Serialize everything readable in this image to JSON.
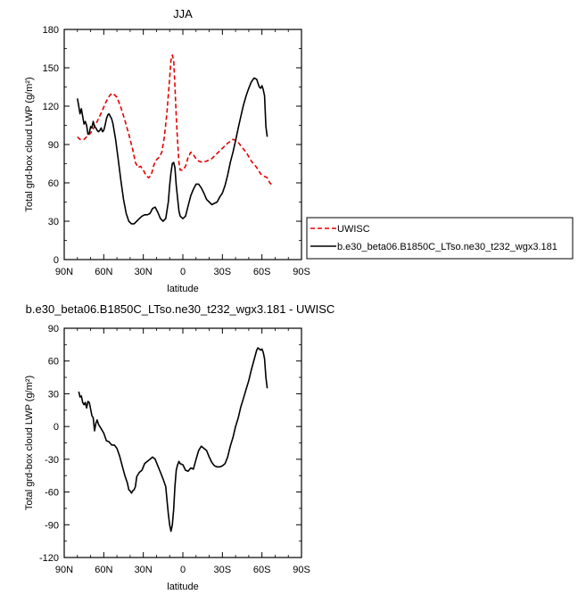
{
  "chart_data": [
    {
      "type": "line",
      "title": "JJA",
      "xlabel": "latitude",
      "ylabel": "Total grd-box cloud LWP (g/m²)",
      "xlim": [
        90,
        -90
      ],
      "ylim": [
        0,
        180
      ],
      "x_ticks": [
        90,
        60,
        30,
        0,
        -30,
        -60,
        -90
      ],
      "x_tick_labels": [
        "90N",
        "60N",
        "30N",
        "0",
        "30S",
        "60S",
        "90S"
      ],
      "y_ticks": [
        0,
        30,
        60,
        90,
        120,
        150,
        180
      ],
      "y_tick_labels": [
        "0",
        "30",
        "60",
        "90",
        "120",
        "150",
        "180"
      ],
      "legend_position": "right",
      "series": [
        {
          "name": "UWISC",
          "color": "#e60000",
          "dash": "dashed",
          "points": [
            [
              80,
              96
            ],
            [
              78,
              94
            ],
            [
              75,
              94
            ],
            [
              72,
              97
            ],
            [
              70,
              99
            ],
            [
              67,
              104
            ],
            [
              64,
              110
            ],
            [
              61,
              117
            ],
            [
              58,
              124
            ],
            [
              55,
              129
            ],
            [
              53,
              130
            ],
            [
              50,
              127
            ],
            [
              47,
              119
            ],
            [
              44,
              109
            ],
            [
              41,
              98
            ],
            [
              38,
              86
            ],
            [
              36,
              76
            ],
            [
              34,
              72
            ],
            [
              32,
              73
            ],
            [
              30,
              70
            ],
            [
              28,
              66
            ],
            [
              26,
              64
            ],
            [
              24,
              66
            ],
            [
              22,
              74
            ],
            [
              20,
              78
            ],
            [
              18,
              80
            ],
            [
              16,
              84
            ],
            [
              14,
              96
            ],
            [
              12,
              116
            ],
            [
              10,
              142
            ],
            [
              9,
              156
            ],
            [
              8,
              160
            ],
            [
              7,
              156
            ],
            [
              6,
              136
            ],
            [
              5,
              112
            ],
            [
              4,
              92
            ],
            [
              3,
              76
            ],
            [
              2,
              70
            ],
            [
              0,
              70
            ],
            [
              -2,
              73
            ],
            [
              -4,
              80
            ],
            [
              -6,
              84
            ],
            [
              -8,
              82
            ],
            [
              -10,
              79
            ],
            [
              -12,
              77
            ],
            [
              -15,
              76
            ],
            [
              -18,
              77
            ],
            [
              -22,
              79
            ],
            [
              -26,
              83
            ],
            [
              -30,
              87
            ],
            [
              -34,
              91
            ],
            [
              -38,
              94
            ],
            [
              -41,
              93
            ],
            [
              -44,
              89
            ],
            [
              -48,
              84
            ],
            [
              -52,
              77
            ],
            [
              -56,
              72
            ],
            [
              -59,
              67
            ],
            [
              -62,
              65
            ],
            [
              -64,
              64
            ],
            [
              -66,
              60
            ],
            [
              -68,
              58
            ]
          ]
        },
        {
          "name": "b.e30_beta06.B1850C_LTso.ne30_t232_wgx3.181",
          "color": "#000000",
          "dash": "solid",
          "points": [
            [
              80,
              126
            ],
            [
              79,
              120
            ],
            [
              78,
              114
            ],
            [
              77,
              118
            ],
            [
              76,
              112
            ],
            [
              75,
              106
            ],
            [
              74,
              108
            ],
            [
              73,
              105
            ],
            [
              72,
              98
            ],
            [
              71,
              99
            ],
            [
              70,
              104
            ],
            [
              69,
              103
            ],
            [
              68,
              108
            ],
            [
              67,
              104
            ],
            [
              66,
              103
            ],
            [
              65,
              101
            ],
            [
              64,
              100
            ],
            [
              63,
              101
            ],
            [
              62,
              103
            ],
            [
              61,
              100
            ],
            [
              60,
              101
            ],
            [
              59,
              105
            ],
            [
              58,
              110
            ],
            [
              57,
              113
            ],
            [
              56,
              114
            ],
            [
              55,
              112
            ],
            [
              54,
              110
            ],
            [
              53,
              106
            ],
            [
              51,
              94
            ],
            [
              49,
              78
            ],
            [
              47,
              62
            ],
            [
              45,
              47
            ],
            [
              43,
              36
            ],
            [
              41,
              30
            ],
            [
              39,
              28
            ],
            [
              37,
              28
            ],
            [
              35,
              30
            ],
            [
              33,
              32
            ],
            [
              31,
              34
            ],
            [
              29,
              35
            ],
            [
              27,
              35
            ],
            [
              25,
              36
            ],
            [
              23,
              40
            ],
            [
              21,
              41
            ],
            [
              19,
              37
            ],
            [
              17,
              32
            ],
            [
              15,
              30
            ],
            [
              13,
              32
            ],
            [
              11,
              45
            ],
            [
              10,
              58
            ],
            [
              9,
              68
            ],
            [
              8,
              75
            ],
            [
              7,
              76
            ],
            [
              6,
              72
            ],
            [
              5,
              58
            ],
            [
              4,
              48
            ],
            [
              3,
              38
            ],
            [
              2,
              34
            ],
            [
              0,
              32
            ],
            [
              -2,
              34
            ],
            [
              -4,
              42
            ],
            [
              -6,
              50
            ],
            [
              -8,
              55
            ],
            [
              -10,
              59
            ],
            [
              -12,
              59
            ],
            [
              -14,
              56
            ],
            [
              -16,
              52
            ],
            [
              -18,
              47
            ],
            [
              -20,
              45
            ],
            [
              -22,
              43
            ],
            [
              -24,
              44
            ],
            [
              -26,
              45
            ],
            [
              -28,
              49
            ],
            [
              -30,
              52
            ],
            [
              -32,
              58
            ],
            [
              -34,
              66
            ],
            [
              -36,
              76
            ],
            [
              -38,
              84
            ],
            [
              -40,
              93
            ],
            [
              -42,
              103
            ],
            [
              -44,
              112
            ],
            [
              -46,
              121
            ],
            [
              -48,
              128
            ],
            [
              -50,
              134
            ],
            [
              -52,
              139
            ],
            [
              -54,
              142
            ],
            [
              -56,
              141
            ],
            [
              -57,
              138
            ],
            [
              -58,
              135
            ],
            [
              -59,
              134
            ],
            [
              -60,
              136
            ],
            [
              -61,
              133
            ],
            [
              -62,
              128
            ],
            [
              -63,
              104
            ],
            [
              -64,
              96
            ]
          ]
        }
      ]
    },
    {
      "type": "line",
      "title": "b.e30_beta06.B1850C_LTso.ne30_t232_wgx3.181 - UWISC",
      "xlabel": "latitude",
      "ylabel": "Total grd-box cloud LWP (g/m²)",
      "xlim": [
        90,
        -90
      ],
      "ylim": [
        -120,
        90
      ],
      "x_ticks": [
        90,
        60,
        30,
        0,
        -30,
        -60,
        -90
      ],
      "x_tick_labels": [
        "90N",
        "60N",
        "30N",
        "0",
        "30S",
        "60S",
        "90S"
      ],
      "y_ticks": [
        -120,
        -90,
        -60,
        -30,
        0,
        30,
        60,
        90
      ],
      "y_tick_labels": [
        "-120",
        "-90",
        "-60",
        "-30",
        "0",
        "30",
        "60",
        "90"
      ],
      "series": [
        {
          "color": "#000000",
          "dash": "solid",
          "points": [
            [
              79,
              32
            ],
            [
              78,
              27
            ],
            [
              77,
              28
            ],
            [
              76,
              22
            ],
            [
              75,
              20
            ],
            [
              74,
              22
            ],
            [
              73,
              17
            ],
            [
              72,
              23
            ],
            [
              71,
              22
            ],
            [
              70,
              16
            ],
            [
              69,
              10
            ],
            [
              68,
              8
            ],
            [
              67,
              -4
            ],
            [
              66,
              3
            ],
            [
              65,
              6
            ],
            [
              64,
              2
            ],
            [
              62,
              -2
            ],
            [
              60,
              -6
            ],
            [
              58,
              -13
            ],
            [
              56,
              -14
            ],
            [
              54,
              -17
            ],
            [
              52,
              -17
            ],
            [
              50,
              -20
            ],
            [
              48,
              -27
            ],
            [
              46,
              -36
            ],
            [
              44,
              -45
            ],
            [
              42,
              -52
            ],
            [
              41,
              -58
            ],
            [
              40,
              -59
            ],
            [
              39,
              -61
            ],
            [
              38,
              -59
            ],
            [
              37,
              -58
            ],
            [
              36,
              -55
            ],
            [
              35,
              -46
            ],
            [
              33,
              -42
            ],
            [
              31,
              -40
            ],
            [
              29,
              -34
            ],
            [
              27,
              -32
            ],
            [
              25,
              -30
            ],
            [
              23,
              -28
            ],
            [
              21,
              -30
            ],
            [
              19,
              -36
            ],
            [
              17,
              -42
            ],
            [
              15,
              -48
            ],
            [
              13,
              -55
            ],
            [
              12,
              -68
            ],
            [
              11,
              -80
            ],
            [
              10,
              -90
            ],
            [
              9,
              -96
            ],
            [
              8,
              -90
            ],
            [
              7,
              -76
            ],
            [
              6,
              -55
            ],
            [
              5,
              -40
            ],
            [
              4,
              -35
            ],
            [
              3,
              -32
            ],
            [
              2,
              -34
            ],
            [
              0,
              -35
            ],
            [
              -2,
              -40
            ],
            [
              -4,
              -41
            ],
            [
              -6,
              -38
            ],
            [
              -8,
              -39
            ],
            [
              -10,
              -30
            ],
            [
              -12,
              -22
            ],
            [
              -14,
              -18
            ],
            [
              -16,
              -20
            ],
            [
              -18,
              -22
            ],
            [
              -20,
              -28
            ],
            [
              -22,
              -33
            ],
            [
              -24,
              -36
            ],
            [
              -26,
              -37
            ],
            [
              -28,
              -37
            ],
            [
              -30,
              -36
            ],
            [
              -32,
              -34
            ],
            [
              -34,
              -28
            ],
            [
              -36,
              -18
            ],
            [
              -38,
              -10
            ],
            [
              -40,
              0
            ],
            [
              -42,
              8
            ],
            [
              -44,
              18
            ],
            [
              -46,
              26
            ],
            [
              -48,
              34
            ],
            [
              -50,
              42
            ],
            [
              -52,
              52
            ],
            [
              -54,
              61
            ],
            [
              -56,
              70
            ],
            [
              -57,
              72
            ],
            [
              -58,
              71
            ],
            [
              -59,
              70
            ],
            [
              -60,
              71
            ],
            [
              -61,
              68
            ],
            [
              -62,
              62
            ],
            [
              -63,
              45
            ],
            [
              -64,
              35
            ]
          ]
        }
      ]
    }
  ]
}
